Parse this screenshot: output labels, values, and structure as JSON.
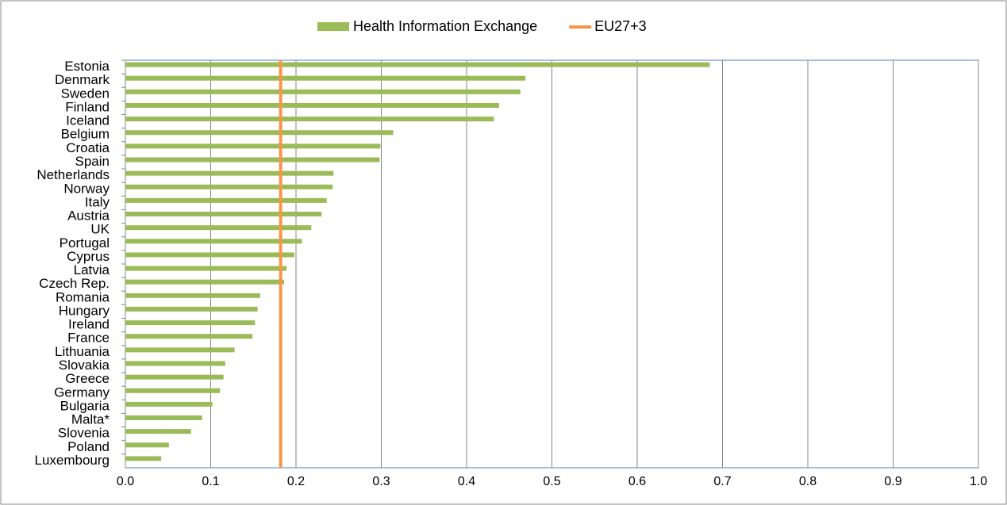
{
  "chart_data": {
    "type": "bar",
    "orientation": "horizontal",
    "categories": [
      "Estonia",
      "Denmark",
      "Sweden",
      "Finland",
      "Iceland",
      "Belgium",
      "Croatia",
      "Spain",
      "Netherlands",
      "Norway",
      "Italy",
      "Austria",
      "UK",
      "Portugal",
      "Cyprus",
      "Latvia",
      "Czech Rep.",
      "Romania",
      "Hungary",
      "Ireland",
      "France",
      "Lithuania",
      "Slovakia",
      "Greece",
      "Germany",
      "Bulgaria",
      "Malta*",
      "Slovenia",
      "Poland",
      "Luxembourg"
    ],
    "series": [
      {
        "name": "Health Information Exchange",
        "color": "#9bbb59",
        "values": [
          0.685,
          0.469,
          0.463,
          0.438,
          0.432,
          0.314,
          0.299,
          0.298,
          0.244,
          0.243,
          0.236,
          0.23,
          0.218,
          0.207,
          0.198,
          0.189,
          0.186,
          0.158,
          0.155,
          0.152,
          0.149,
          0.128,
          0.117,
          0.115,
          0.111,
          0.102,
          0.09,
          0.077,
          0.051,
          0.042
        ]
      }
    ],
    "reference_lines": [
      {
        "name": "EU27+3",
        "color": "#f79646",
        "value": 0.182
      }
    ],
    "xlim": [
      0,
      1
    ],
    "xticks": [
      {
        "value": 0,
        "label": "0.0"
      },
      0.1,
      0.2,
      0.3,
      0.4,
      0.5,
      0.6,
      0.7,
      0.8,
      0.9,
      {
        "value": 1,
        "label": "1.0"
      }
    ],
    "grid": true,
    "legend": "top"
  }
}
